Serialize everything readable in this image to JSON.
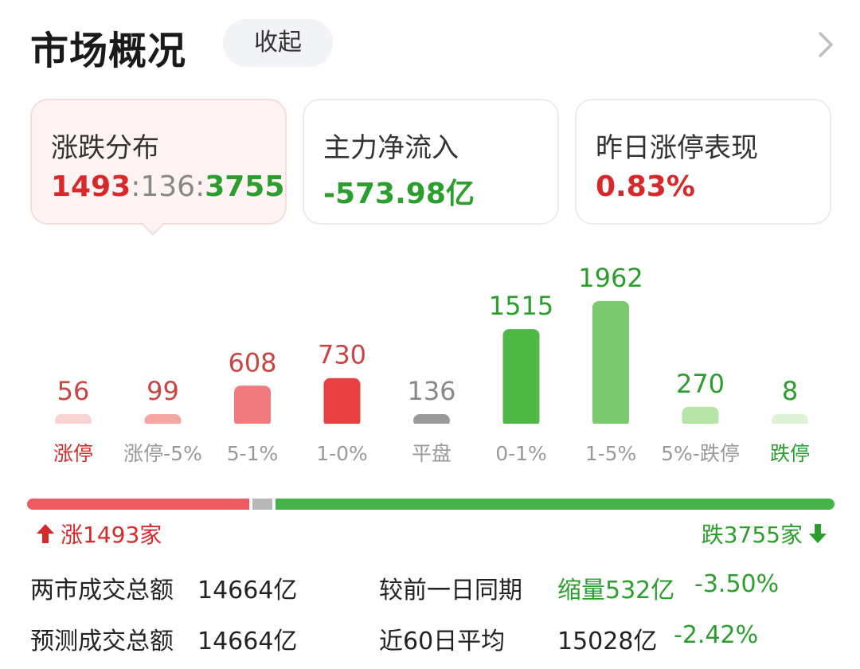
{
  "header": {
    "title": "市场概况",
    "collapse_label": "收起"
  },
  "cards": {
    "distribution": {
      "label": "涨跌分布",
      "up": "1493",
      "sep1": ":",
      "flat": "136",
      "sep2": ":",
      "down": "3755"
    },
    "net_inflow": {
      "label": "主力净流入",
      "value": "-573.98亿"
    },
    "limit_up_perf": {
      "label": "昨日涨停表现",
      "value": "0.83%"
    }
  },
  "chart_data": {
    "type": "bar",
    "categories": [
      "涨停",
      "涨停-5%",
      "5-1%",
      "1-0%",
      "平盘",
      "0-1%",
      "1-5%",
      "5%-跌停",
      "跌停"
    ],
    "values": [
      56,
      99,
      608,
      730,
      136,
      1515,
      1962,
      270,
      8
    ],
    "colors": [
      "#f9d4d2",
      "#f4a6a4",
      "#ef7b7e",
      "#e84142",
      "#9a9a9a",
      "#4fb846",
      "#7cc96f",
      "#b6e3a8",
      "#dcf2d6"
    ],
    "label_colors": [
      "#c94543",
      "#c94543",
      "#c94543",
      "#c94543",
      "#888888",
      "#2c9e2e",
      "#2c9e2e",
      "#2c9e2e",
      "#2c9e2e"
    ],
    "category_label_colors": [
      "#d7282a",
      "#999999",
      "#999999",
      "#999999",
      "#999999",
      "#999999",
      "#999999",
      "#999999",
      "#2c9e2e"
    ]
  },
  "summary": {
    "up_text": "涨1493家",
    "down_text": "跌3755家",
    "up_count": 1493,
    "flat_count": 136,
    "down_count": 3755
  },
  "stats": {
    "row1": {
      "label": "两市成交总额",
      "value": "14664亿",
      "compare_label": "较前一日同期",
      "change": "缩量532亿",
      "pct": "-3.50%"
    },
    "row2": {
      "label": "预测成交总额",
      "value": "14664亿",
      "compare_label": "近60日平均",
      "change": "15028亿",
      "pct": "-2.42%"
    }
  },
  "colors": {
    "up": "#d7282a",
    "down": "#2c9e2e",
    "flat": "#9a9a9a"
  }
}
